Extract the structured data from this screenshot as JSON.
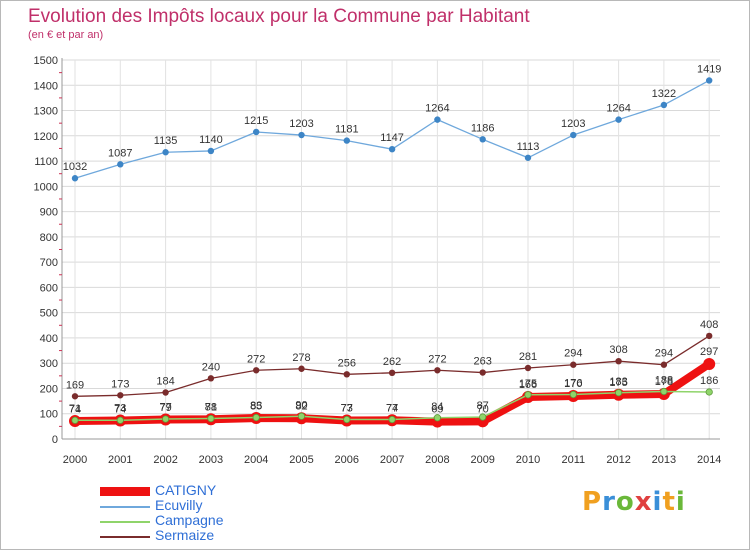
{
  "title": "Evolution des Impôts locaux pour la Commune par Habitant",
  "subtitle": "(en € et par an)",
  "logo": {
    "letters": [
      "P",
      "r",
      "o",
      "x",
      "i",
      "t",
      "i"
    ],
    "colors": [
      "#f0a020",
      "#3a8fd8",
      "#6ab83a",
      "#e04040",
      "#3a8fd8",
      "#f0a020",
      "#6ab83a"
    ]
  },
  "chart_data": {
    "type": "line",
    "title": "Evolution des Impôts locaux pour la Commune par Habitant",
    "ylabel": "(en € et par an)",
    "xlabel": "",
    "ylim": [
      0,
      1500
    ],
    "yticks": [
      0,
      100,
      200,
      300,
      400,
      500,
      600,
      700,
      800,
      900,
      1000,
      1100,
      1200,
      1300,
      1400,
      1500
    ],
    "categories": [
      "2000",
      "2001",
      "2002",
      "2003",
      "2004",
      "2005",
      "2006",
      "2007",
      "2008",
      "2009",
      "2010",
      "2011",
      "2012",
      "2013",
      "2014"
    ],
    "series": [
      {
        "name": "Ecuvilly",
        "color": "#6fa8dc",
        "marker": "#3d85c6",
        "values": [
          1032,
          1087,
          1135,
          1140,
          1215,
          1203,
          1181,
          1147,
          1264,
          1186,
          1113,
          1203,
          1264,
          1322,
          1419
        ],
        "labels": [
          "1032",
          "1087",
          "1135",
          "1140",
          "1215",
          "1203",
          "1181",
          "1147",
          "1264",
          "1186",
          "1113",
          "1203",
          "1264",
          "1322",
          "1419"
        ]
      },
      {
        "name": "Sermaize",
        "color": "#7a2c2c",
        "marker": "#7a2c2c",
        "values": [
          169,
          173,
          184,
          240,
          272,
          278,
          256,
          262,
          272,
          263,
          281,
          294,
          308,
          294,
          408
        ],
        "labels": [
          "169",
          "173",
          "184",
          "240",
          "272",
          "278",
          "256",
          "262",
          "272",
          "263",
          "281",
          "294",
          "308",
          "294",
          "408"
        ]
      },
      {
        "name": "Campagne",
        "color": "#8fd46a",
        "marker": "#8fd46a",
        "values": [
          74,
          74,
          79,
          81,
          85,
          90,
          77,
          77,
          84,
          87,
          175,
          176,
          183,
          188,
          186
        ],
        "labels": [
          "74",
          "74",
          "79",
          "81",
          "85",
          "90",
          "77",
          "77",
          "84",
          "87",
          "175",
          "176",
          "183",
          "188",
          "186"
        ]
      },
      {
        "name": "CATIGNY",
        "color": "#ee1111",
        "marker": "#ee1111",
        "values": [
          71,
          73,
          77,
          78,
          83,
          82,
          73,
          74,
          69,
          70,
          166,
          170,
          175,
          178,
          297
        ],
        "labels": [
          "71",
          "73",
          "77",
          "78",
          "83",
          "82",
          "73",
          "74",
          "69",
          "70",
          "166",
          "170",
          "175",
          "178",
          "297"
        ]
      }
    ],
    "legend": [
      "CATIGNY",
      "Ecuvilly",
      "Campagne",
      "Sermaize"
    ]
  }
}
